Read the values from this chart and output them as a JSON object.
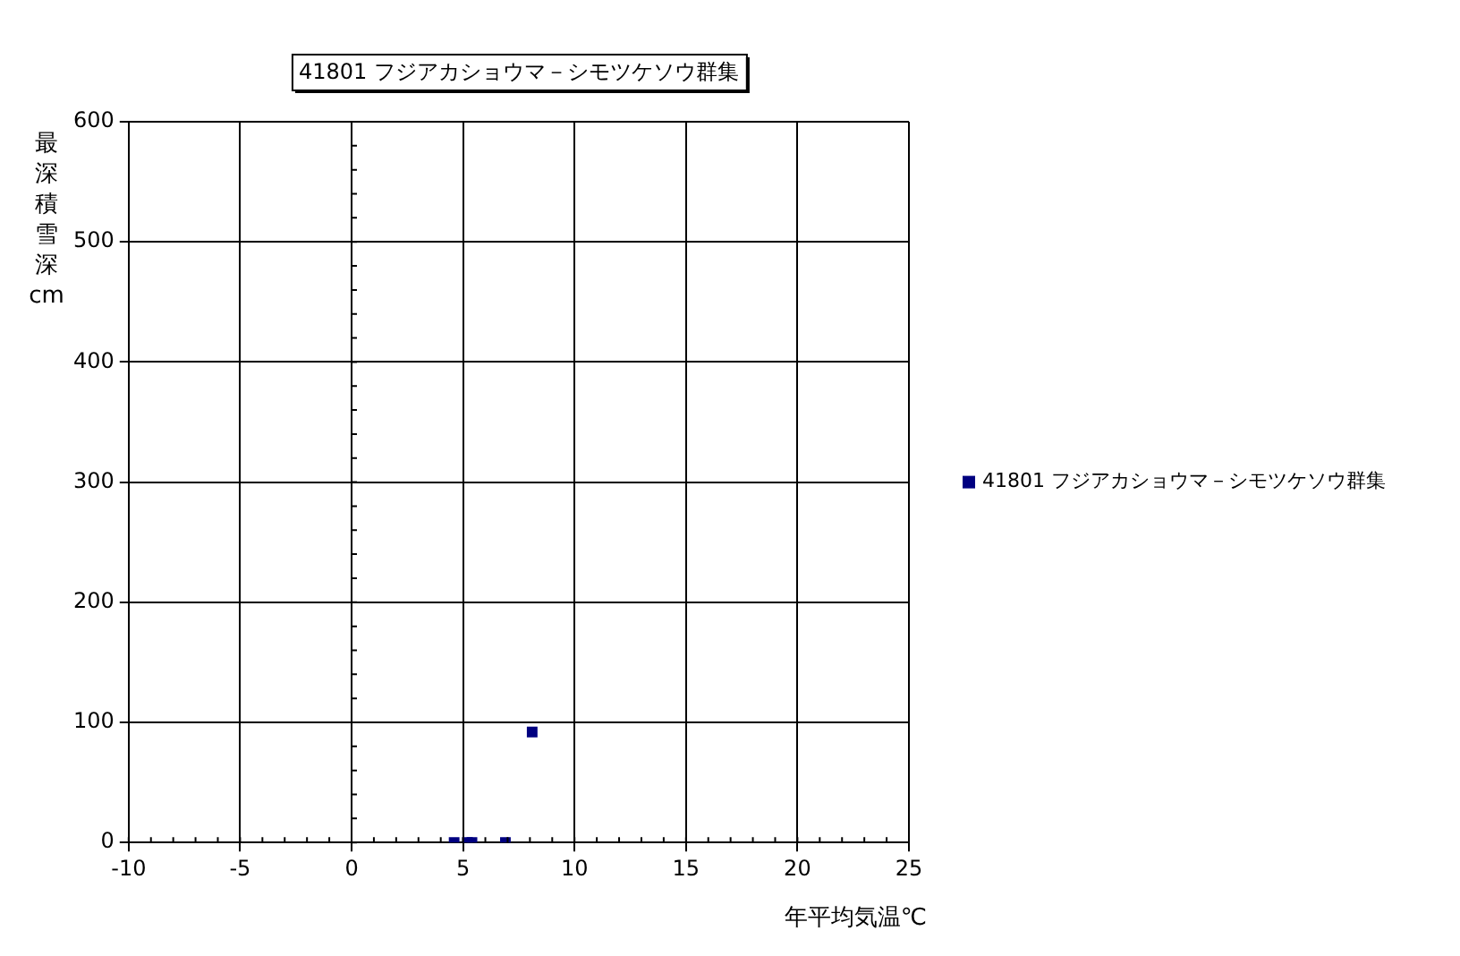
{
  "chart_data": {
    "type": "scatter",
    "title": "41801 フジアカショウマ－シモツケソウ群集",
    "xlabel": "年平均気温℃",
    "ylabel": "最深積雪深cm",
    "series": [
      {
        "name": "41801 フジアカショウマ－シモツケソウ群集",
        "color": "#000080",
        "x": [
          4.6,
          5.2,
          5.4,
          6.9,
          8.1
        ],
        "values": [
          0,
          0,
          0,
          0,
          92
        ]
      }
    ],
    "xlim": [
      -10,
      25
    ],
    "xticks": [
      -10,
      -5,
      0,
      5,
      10,
      15,
      20,
      25
    ],
    "ylim": [
      0,
      600
    ],
    "yticks": [
      0,
      100,
      200,
      300,
      400,
      500,
      600
    ],
    "grid": true,
    "legend": "right",
    "marker": "square"
  }
}
